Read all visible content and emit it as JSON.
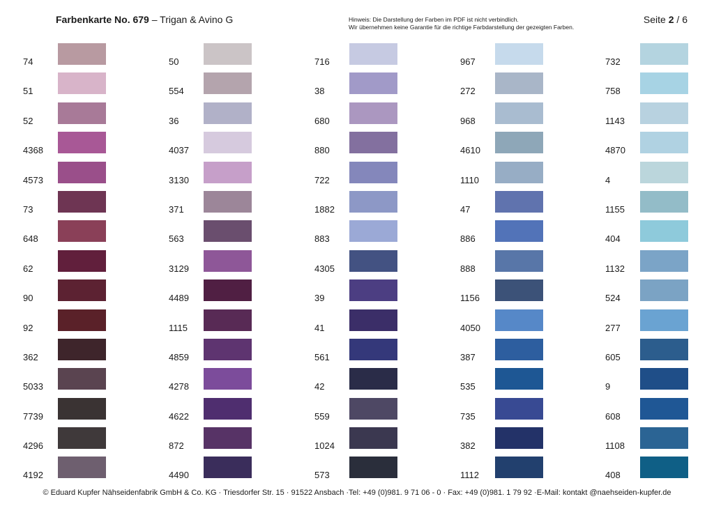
{
  "header": {
    "title_bold": "Farbenkarte No. 679",
    "title_rest": " – Trigan & Avino G",
    "notice_line1": "Hinweis: Die Darstellung der Farben im PDF ist nicht verbindlich.",
    "notice_line2": "Wir übernehmen keine Garantie für die richtige Farbdarstellung der gezeigten Farben.",
    "page_label": "Seite ",
    "page_current": "2",
    "page_total": " / 6"
  },
  "columns": [
    [
      {
        "number": "74",
        "color": "#b89aa1"
      },
      {
        "number": "51",
        "color": "#d8b4c9"
      },
      {
        "number": "52",
        "color": "#a87a98"
      },
      {
        "number": "4368",
        "color": "#a85896"
      },
      {
        "number": "4573",
        "color": "#9a4f8a"
      },
      {
        "number": "73",
        "color": "#6e3553"
      },
      {
        "number": "648",
        "color": "#8a4058"
      },
      {
        "number": "62",
        "color": "#611f3c"
      },
      {
        "number": "90",
        "color": "#5c2232"
      },
      {
        "number": "92",
        "color": "#5a2129"
      },
      {
        "number": "362",
        "color": "#3e252b"
      },
      {
        "number": "5033",
        "color": "#5a4450"
      },
      {
        "number": "7739",
        "color": "#3a3333"
      },
      {
        "number": "4296",
        "color": "#3f393a"
      },
      {
        "number": "4192",
        "color": "#6e5f6f"
      }
    ],
    [
      {
        "number": "50",
        "color": "#cbc4c6"
      },
      {
        "number": "554",
        "color": "#b4a4ad"
      },
      {
        "number": "36",
        "color": "#b1b1c8"
      },
      {
        "number": "4037",
        "color": "#d6cade"
      },
      {
        "number": "3130",
        "color": "#c69fc9"
      },
      {
        "number": "371",
        "color": "#9c8699"
      },
      {
        "number": "563",
        "color": "#6a4e6e"
      },
      {
        "number": "3129",
        "color": "#8e5798"
      },
      {
        "number": "4489",
        "color": "#501f43"
      },
      {
        "number": "1115",
        "color": "#582a55"
      },
      {
        "number": "4859",
        "color": "#5e3470"
      },
      {
        "number": "4278",
        "color": "#7c4c9b"
      },
      {
        "number": "4622",
        "color": "#4f2e6f"
      },
      {
        "number": "872",
        "color": "#573366"
      },
      {
        "number": "4490",
        "color": "#3a2d5b"
      }
    ],
    [
      {
        "number": "716",
        "color": "#c6cae2"
      },
      {
        "number": "38",
        "color": "#a19ac8"
      },
      {
        "number": "680",
        "color": "#ab97c0"
      },
      {
        "number": "880",
        "color": "#83709f"
      },
      {
        "number": "722",
        "color": "#8487bb"
      },
      {
        "number": "1882",
        "color": "#8d98c6"
      },
      {
        "number": "883",
        "color": "#9ba9d6"
      },
      {
        "number": "4305",
        "color": "#435282"
      },
      {
        "number": "39",
        "color": "#4c3e82"
      },
      {
        "number": "41",
        "color": "#3b2e68"
      },
      {
        "number": "561",
        "color": "#34387a"
      },
      {
        "number": "42",
        "color": "#2a2c48"
      },
      {
        "number": "559",
        "color": "#4e4864"
      },
      {
        "number": "1024",
        "color": "#3b3850"
      },
      {
        "number": "573",
        "color": "#2a2e3b"
      }
    ],
    [
      {
        "number": "967",
        "color": "#c6daec"
      },
      {
        "number": "272",
        "color": "#a9b6c8"
      },
      {
        "number": "968",
        "color": "#a9bcd0"
      },
      {
        "number": "4610",
        "color": "#8ea7b8"
      },
      {
        "number": "1110",
        "color": "#97adc5"
      },
      {
        "number": "47",
        "color": "#6073ae"
      },
      {
        "number": "886",
        "color": "#5273b8"
      },
      {
        "number": "888",
        "color": "#5876a8"
      },
      {
        "number": "1156",
        "color": "#3c5278"
      },
      {
        "number": "4050",
        "color": "#5688c8"
      },
      {
        "number": "387",
        "color": "#2d5e9f"
      },
      {
        "number": "535",
        "color": "#1e5794"
      },
      {
        "number": "735",
        "color": "#384a93"
      },
      {
        "number": "382",
        "color": "#233268"
      },
      {
        "number": "1112",
        "color": "#22406e"
      }
    ],
    [
      {
        "number": "732",
        "color": "#b4d4e0"
      },
      {
        "number": "758",
        "color": "#a7d3e4"
      },
      {
        "number": "1143",
        "color": "#b8d2e0"
      },
      {
        "number": "4870",
        "color": "#b0d2e2"
      },
      {
        "number": "4",
        "color": "#bbd6dc"
      },
      {
        "number": "1155",
        "color": "#93bcc8"
      },
      {
        "number": "404",
        "color": "#8ecadb"
      },
      {
        "number": "1132",
        "color": "#7ba4c7"
      },
      {
        "number": "524",
        "color": "#7ba3c4"
      },
      {
        "number": "277",
        "color": "#6aa3d2"
      },
      {
        "number": "605",
        "color": "#2c5d8d"
      },
      {
        "number": "9",
        "color": "#1f4e88"
      },
      {
        "number": "608",
        "color": "#1f5795"
      },
      {
        "number": "1108",
        "color": "#2b6494"
      },
      {
        "number": "408",
        "color": "#0f5f86"
      }
    ]
  ],
  "footer": "© Eduard Kupfer Nähseidenfabrik GmbH & Co. KG · Triesdorfer Str. 15 · 91522 Ansbach ·Tel: +49 (0)981. 9 71 06 - 0 · Fax: +49 (0)981. 1 79 92 ·E-Mail: kontakt @naehseiden-kupfer.de"
}
